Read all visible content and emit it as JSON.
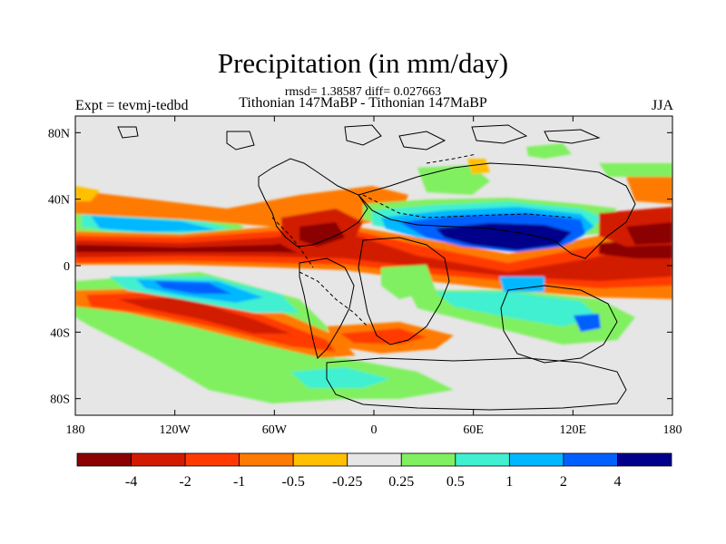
{
  "figure": {
    "title": "Precipitation (in mm/day)",
    "stats": "rmsd= 1.38587 diff= 0.027663",
    "subtitle": "Tithonian 147MaBP - Tithonian 147MaBP",
    "left_label": "Expt = tevmj-tedbd",
    "right_label": "JJA"
  },
  "axes": {
    "lat_labels": [
      "80N",
      "40N",
      "0",
      "40S",
      "80S"
    ],
    "lon_labels": [
      "180",
      "120W",
      "60W",
      "0",
      "60E",
      "120E",
      "180"
    ]
  },
  "colorbar": {
    "labels": [
      "-4",
      "-2",
      "-1",
      "-0.5",
      "-0.25",
      "0.25",
      "0.5",
      "1",
      "2",
      "4"
    ],
    "colors": [
      "#8b0000",
      "#d21a00",
      "#ff3a00",
      "#ff7a00",
      "#ffc000",
      "#e6e6e6",
      "#80f060",
      "#40f0d0",
      "#00b8ff",
      "#0060ff",
      "#00008b"
    ]
  },
  "palette": {
    "background": "#e6e6e6",
    "coastline": "#000000"
  }
}
